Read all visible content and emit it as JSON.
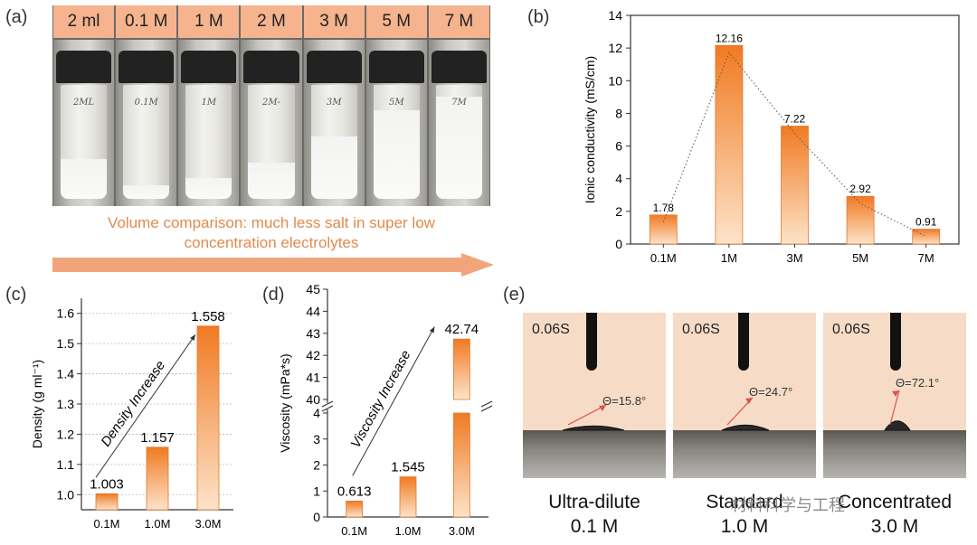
{
  "panel_letters": {
    "a": "(a)",
    "b": "(b)",
    "c": "(c)",
    "d": "(d)",
    "e": "(e)"
  },
  "panel_a": {
    "headers": [
      "2 ml",
      "0.1 M",
      "1 M",
      "2 M",
      "3 M",
      "5 M",
      "7 M"
    ],
    "vial_tags": [
      "2ML",
      "0.1M",
      "1M",
      "2M-",
      "3M",
      "5M",
      "7M"
    ],
    "salt_fill": [
      0.35,
      0.12,
      0.18,
      0.32,
      0.55,
      0.78,
      0.9
    ],
    "caption_line1": "Volume comparison: much less salt in super low",
    "caption_line2": "concentration electrolytes"
  },
  "chart_data": [
    {
      "panel": "b",
      "type": "bar",
      "categories": [
        "0.1M",
        "1M",
        "3M",
        "5M",
        "7M"
      ],
      "values": [
        1.78,
        12.16,
        7.22,
        2.92,
        0.91
      ],
      "value_labels": [
        "1.78",
        "12.16",
        "7.22",
        "2.92",
        "0.91"
      ],
      "ylabel": "Ionic conductivity (mS/cm)",
      "ylim": [
        0,
        14
      ],
      "yticks": [
        "0",
        "2",
        "4",
        "6",
        "8",
        "10",
        "12",
        "14"
      ],
      "trend_line": "dotted"
    },
    {
      "panel": "c",
      "type": "bar",
      "categories": [
        "0.1M",
        "1.0M",
        "3.0M"
      ],
      "values": [
        1.003,
        1.157,
        1.558
      ],
      "value_labels": [
        "1.003",
        "1.157",
        "1.558"
      ],
      "ylabel": "Density (g ml⁻¹)",
      "ylim": [
        0.95,
        1.65
      ],
      "yticks": [
        "1.0",
        "1.1",
        "1.2",
        "1.3",
        "1.4",
        "1.5",
        "1.6"
      ],
      "annotation": "Density Increase"
    },
    {
      "panel": "d",
      "type": "bar",
      "categories": [
        "0.1M",
        "1.0M",
        "3.0M"
      ],
      "values": [
        0.613,
        1.545,
        42.74
      ],
      "value_labels": [
        "0.613",
        "1.545",
        "42.74"
      ],
      "ylabel": "Viscosity (mPa*s)",
      "ylim_lower": [
        0,
        4
      ],
      "ylim_upper": [
        40,
        45
      ],
      "yticks_lower": [
        "0",
        "1",
        "2",
        "3",
        "4"
      ],
      "yticks_upper": [
        "40",
        "41",
        "42",
        "43",
        "44",
        "45"
      ],
      "annotation": "Viscosity Increase"
    }
  ],
  "panel_e": {
    "panels": [
      {
        "time": "0.06S",
        "angle": "Θ=15.8°",
        "angle_value": 15.8,
        "label1": "Ultra-dilute",
        "label2": "0.1 M"
      },
      {
        "time": "0.06S",
        "angle": "Θ=24.7°",
        "angle_value": 24.7,
        "label1": "Standard",
        "label2": "1.0 M"
      },
      {
        "time": "0.06S",
        "angle": "Θ=72.1°",
        "angle_value": 72.1,
        "label1": "Concentrated",
        "label2": "3.0 M"
      }
    ],
    "watermark": "材料科学与工程"
  },
  "colors": {
    "bar_top": "#f07a22",
    "bar_bottom": "#fde3c9",
    "header_bg": "#f5b48e",
    "caption": "#e08a4e",
    "arrow": "#f2a57a"
  }
}
